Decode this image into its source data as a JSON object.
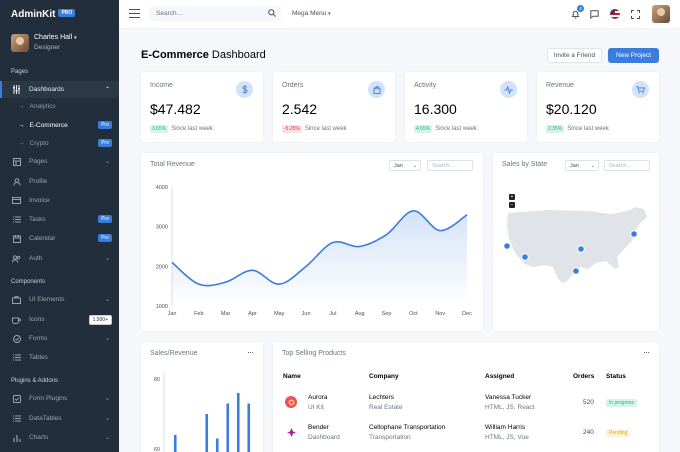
{
  "brand": {
    "name": "AdminKit",
    "badge": "PRO"
  },
  "user": {
    "name": "Charles Hall",
    "role": "Designer"
  },
  "sidebar": {
    "section_pages": "Pages",
    "section_components": "Components",
    "section_plugins": "Plugins & Addons",
    "dashboards": "Dashboards",
    "sub_analytics": "Analytics",
    "sub_ecommerce": "E-Commerce",
    "sub_crypto": "Crypto",
    "pages": "Pages",
    "profile": "Profile",
    "invoice": "Invoice",
    "tasks": "Tasks",
    "calendar": "Calendar",
    "auth": "Auth",
    "ui_elements": "UI Elements",
    "icons": "Icons",
    "forms": "Forms",
    "tables": "Tables",
    "form_plugins": "Form Plugins",
    "datatables": "DataTables",
    "charts": "Charts",
    "badge_pro": "Pro",
    "badge_icons": "1.500+"
  },
  "topbar": {
    "search_placeholder": "Search…",
    "mega_menu": "Mega Menu",
    "notif_count": "4"
  },
  "header": {
    "title_bold": "E-Commerce",
    "title_rest": "Dashboard",
    "invite": "Invite a Friend",
    "new_project": "New Project"
  },
  "stats": [
    {
      "label": "Income",
      "value": "$47.482",
      "change": "3.65%",
      "trend": "up",
      "note": "Since last week"
    },
    {
      "label": "Orders",
      "value": "2.542",
      "change": "-5.25%",
      "trend": "down",
      "note": "Since last week"
    },
    {
      "label": "Activity",
      "value": "16.300",
      "change": "4.65%",
      "trend": "up",
      "note": "Since last week"
    },
    {
      "label": "Revenue",
      "value": "$20.120",
      "change": "2.35%",
      "trend": "up",
      "note": "Since last week"
    }
  ],
  "total_revenue": {
    "title": "Total Revenue",
    "filter": "Jan",
    "search": "Search..."
  },
  "sales_by_state": {
    "title": "Sales by State",
    "filter": "Jan",
    "search": "Search..."
  },
  "sales_revenue": {
    "title": "Sales/Revenue"
  },
  "chart_data": [
    {
      "type": "area",
      "xlabel": "",
      "ylabel": "",
      "categories": [
        "Jan",
        "Feb",
        "Mar",
        "Apr",
        "May",
        "Jun",
        "Jul",
        "Aug",
        "Sep",
        "Oct",
        "Nov",
        "Dec"
      ],
      "series": [
        {
          "values": [
            2100,
            1550,
            1600,
            1900,
            1550,
            2000,
            2600,
            2500,
            2800,
            3400,
            2900,
            3300
          ]
        }
      ],
      "yticks": [
        1000,
        2000,
        3000,
        4000
      ],
      "ylim": [
        1000,
        4000
      ],
      "grid": false
    },
    {
      "type": "bar",
      "xlabel": "",
      "ylabel": "",
      "yticks": [
        60,
        80
      ],
      "series": [
        {
          "values": [
            64,
            52,
            57,
            70,
            63,
            73,
            76,
            73
          ]
        }
      ]
    }
  ],
  "top_selling": {
    "title": "Top Selling Products",
    "columns": [
      "Name",
      "Company",
      "Assigned",
      "Orders",
      "Status"
    ],
    "rows": [
      {
        "name": "Aurora",
        "type": "UI Kit",
        "company": "Lechters",
        "industry": "Real Estate",
        "assignee": "Vanessa Tucker",
        "skills": "HTML, JS, React",
        "orders": "520",
        "status": "In progress",
        "status_kind": "prog"
      },
      {
        "name": "Bender",
        "type": "Dashboard",
        "company": "Cellophane Transportation",
        "industry": "Transportation",
        "assignee": "William Harris",
        "skills": "HTML, JS, Vue",
        "orders": "240",
        "status": "Pending",
        "status_kind": "pend"
      }
    ]
  },
  "colors": {
    "primary": "#3b7ddd",
    "sidebar": "#222e3c",
    "success": "#1cbb8c",
    "danger": "#dc3545",
    "warning": "#f0a30a"
  }
}
